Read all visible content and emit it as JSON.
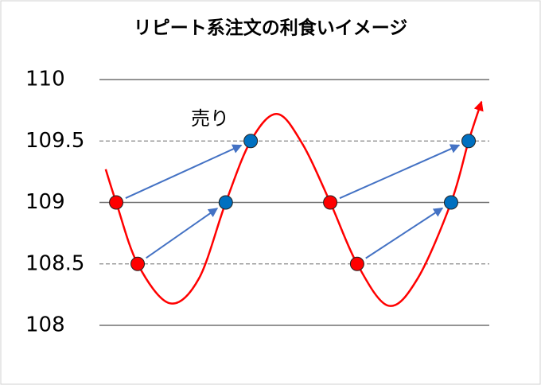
{
  "chart_data": {
    "type": "line",
    "title": "リピート系注文の利食いイメージ",
    "annotation": "売り",
    "xlim": [
      0,
      100
    ],
    "ylim": [
      108,
      110
    ],
    "yticks": [
      108,
      108.5,
      109,
      109.5,
      110
    ],
    "grid_dashed": [
      false,
      true,
      false,
      true,
      false
    ],
    "curve": {
      "color": "#ff0000",
      "x": [
        1.6,
        4.3,
        9.8,
        18.0,
        25.5,
        32.4,
        38.8,
        45.5,
        52.0,
        59.2,
        66.1,
        74.1,
        81.6,
        90.2,
        94.7,
        98.0
      ],
      "values": [
        109.27,
        109.0,
        108.5,
        108.18,
        108.38,
        109.0,
        109.5,
        109.72,
        109.48,
        109.0,
        108.5,
        108.16,
        108.38,
        109.0,
        109.5,
        109.82
      ]
    },
    "series": [
      {
        "color": "#ff0000",
        "x": [
          4.3,
          9.8,
          59.2,
          66.1
        ],
        "values": [
          109.0,
          108.5,
          109.0,
          108.5
        ]
      },
      {
        "color": "#0070c0",
        "x": [
          38.8,
          32.4,
          94.7,
          90.2
        ],
        "values": [
          109.5,
          109.0,
          109.5,
          109.0
        ]
      }
    ],
    "arrow_color": "#4472c4"
  }
}
